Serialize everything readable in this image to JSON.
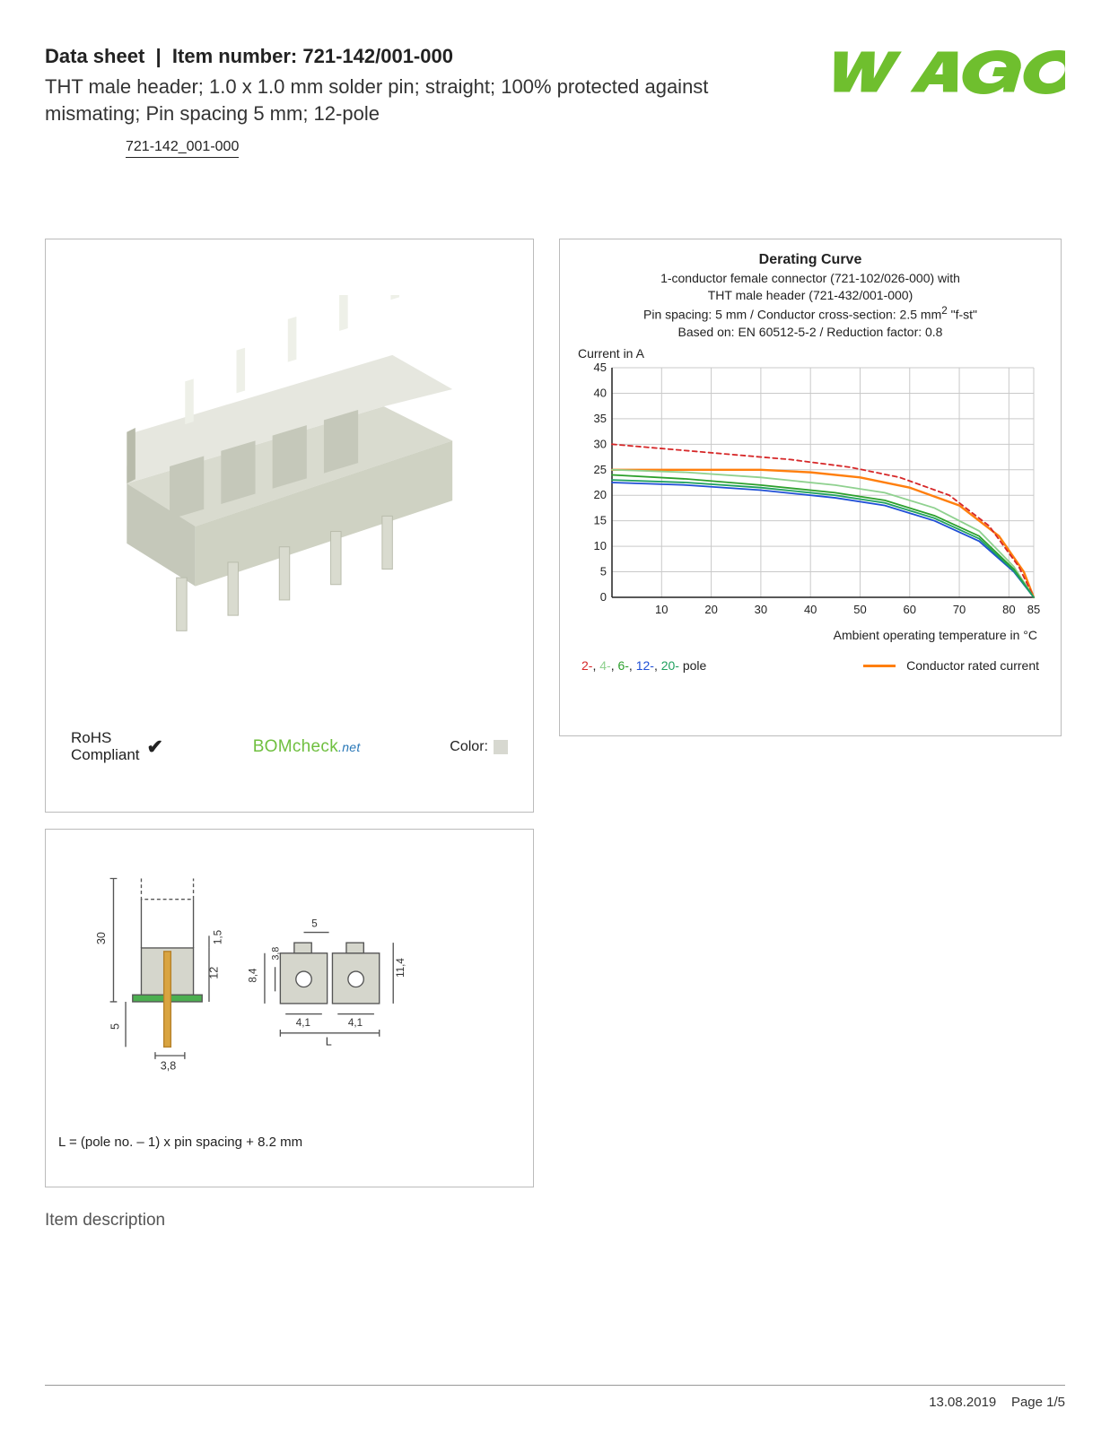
{
  "header": {
    "doc_type": "Data sheet",
    "item_label": "Item number:",
    "item_number": "721-142/001-000",
    "subtitle": "THT male header; 1.0 x 1.0 mm solder pin; straight; 100% protected against mismating; Pin spacing 5 mm; 12-pole",
    "item_link": "721-142_001-000"
  },
  "logo": {
    "text": "WAGO",
    "color": "#6fbf2e"
  },
  "product_panel": {
    "rohs_line1": "RoHS",
    "rohs_line2": "Compliant",
    "bomcheck": "BOMcheck",
    "bomcheck_suffix": ".net",
    "color_label": "Color:",
    "color_swatch": "#d7d8d0",
    "render_colors": {
      "body": "#d9dbcf",
      "body_dark": "#c5c8ba",
      "body_light": "#e6e7df",
      "pin": "#cfd1c6",
      "shadow": "#b8bbab"
    }
  },
  "chart": {
    "title": "Derating Curve",
    "sub1": "1-conductor female connector (721-102/026-000) with",
    "sub2": "THT male header (721-432/001-000)",
    "sub3_prefix": "Pin spacing: 5 mm / Conductor cross-section: 2.5 mm",
    "sub3_suffix": " \"f-st\"",
    "sub4": "Based on: EN 60512-5-2 / Reduction factor: 0.8",
    "y_label": "Current in A",
    "x_label": "Ambient operating temperature in °C",
    "y_ticks": [
      0,
      5,
      10,
      15,
      20,
      25,
      30,
      35,
      40,
      45
    ],
    "x_ticks": [
      10,
      20,
      30,
      40,
      50,
      60,
      70,
      80,
      85
    ],
    "xlim": [
      0,
      85
    ],
    "ylim": [
      0,
      45
    ],
    "grid_color": "#c9c9c9",
    "axis_color": "#222222",
    "background": "#ffffff",
    "series": [
      {
        "name": "rated",
        "color": "#ff7f0e",
        "width": 2.4,
        "dash": "",
        "points": [
          [
            0,
            25
          ],
          [
            10,
            25
          ],
          [
            20,
            25
          ],
          [
            30,
            25
          ],
          [
            40,
            24.5
          ],
          [
            50,
            23.5
          ],
          [
            60,
            21.5
          ],
          [
            70,
            18
          ],
          [
            78,
            12
          ],
          [
            83,
            5
          ],
          [
            85,
            0
          ]
        ]
      },
      {
        "name": "2-pole",
        "color": "#d62728",
        "width": 1.8,
        "dash": "5,4",
        "points": [
          [
            0,
            30
          ],
          [
            12,
            29
          ],
          [
            24,
            28
          ],
          [
            36,
            27
          ],
          [
            48,
            25.5
          ],
          [
            58,
            23.5
          ],
          [
            68,
            20
          ],
          [
            76,
            14
          ],
          [
            82,
            6
          ],
          [
            85,
            0
          ]
        ]
      },
      {
        "name": "4-pole",
        "color": "#8fd18f",
        "width": 1.8,
        "dash": "",
        "points": [
          [
            0,
            25
          ],
          [
            15,
            24.5
          ],
          [
            30,
            23.5
          ],
          [
            45,
            22
          ],
          [
            55,
            20.5
          ],
          [
            65,
            17.5
          ],
          [
            74,
            13
          ],
          [
            81,
            6
          ],
          [
            85,
            0
          ]
        ]
      },
      {
        "name": "6-pole",
        "color": "#2ca02c",
        "width": 1.8,
        "dash": "",
        "points": [
          [
            0,
            24
          ],
          [
            15,
            23.2
          ],
          [
            30,
            22
          ],
          [
            45,
            20.5
          ],
          [
            55,
            19
          ],
          [
            65,
            16
          ],
          [
            74,
            12
          ],
          [
            81,
            5.5
          ],
          [
            85,
            0
          ]
        ]
      },
      {
        "name": "12-pole",
        "color": "#1f4fd6",
        "width": 1.8,
        "dash": "",
        "points": [
          [
            0,
            22.5
          ],
          [
            15,
            22
          ],
          [
            30,
            21
          ],
          [
            45,
            19.5
          ],
          [
            55,
            18
          ],
          [
            65,
            15
          ],
          [
            74,
            11
          ],
          [
            81,
            5
          ],
          [
            85,
            0
          ]
        ]
      },
      {
        "name": "20-pole",
        "color": "#1fa05e",
        "width": 1.8,
        "dash": "",
        "points": [
          [
            0,
            23
          ],
          [
            15,
            22.5
          ],
          [
            30,
            21.5
          ],
          [
            45,
            20
          ],
          [
            55,
            18.5
          ],
          [
            65,
            15.5
          ],
          [
            74,
            11.5
          ],
          [
            81,
            5.2
          ],
          [
            85,
            0
          ]
        ]
      }
    ],
    "legend_poles": [
      {
        "label": "2-",
        "color": "#d62728"
      },
      {
        "label": "4-",
        "color": "#8fd18f"
      },
      {
        "label": "6-",
        "color": "#2ca02c"
      },
      {
        "label": "12-",
        "color": "#1f4fd6"
      },
      {
        "label": "20-",
        "color": "#1fa05e"
      }
    ],
    "legend_pole_suffix": " pole",
    "legend_rated": "Conductor rated current"
  },
  "drawing": {
    "formula": "L = (pole no. – 1) x pin spacing + 8.2 mm",
    "dims": {
      "h_overall": "30",
      "h_body": "12",
      "h_shoulder": "1,5",
      "h_pin": "5",
      "w_pin_pitch": "3,8",
      "spacing": "5",
      "side_h": "8,4",
      "side_h2": "3,8",
      "side_total": "11,4",
      "side_w": "4,1",
      "span": "L"
    },
    "colors": {
      "line": "#555",
      "pin": "#d9a441",
      "pcb": "#4caf50",
      "body": "#d5d6cc"
    }
  },
  "section_heading": "Item description",
  "footer": {
    "date": "13.08.2019",
    "page": "Page 1/5"
  }
}
